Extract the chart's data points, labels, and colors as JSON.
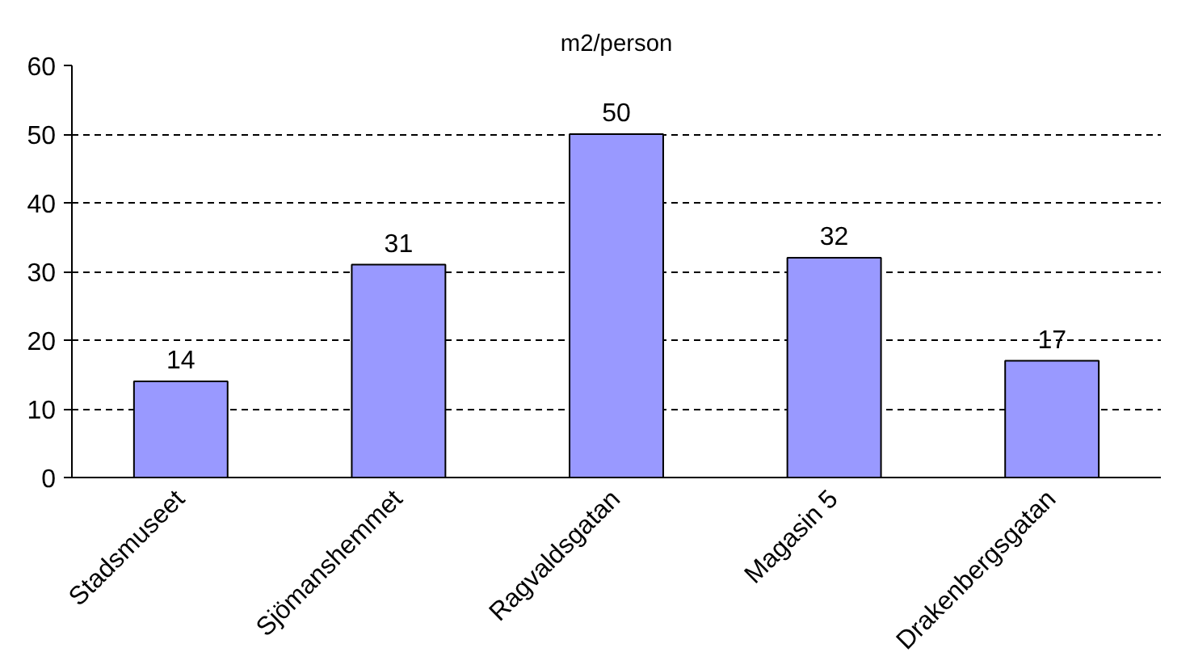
{
  "chart_data": {
    "type": "bar",
    "title": "m2/person",
    "categories": [
      "Stadsmuseet",
      "Sjömanshemmet",
      "Ragvaldsgatan",
      "Magasin 5",
      "Drakenbergsgatan"
    ],
    "values": [
      14,
      31,
      50,
      32,
      17
    ],
    "color": "#9999ff",
    "ylim": [
      0,
      60
    ],
    "yticks": [
      0,
      10,
      20,
      30,
      40,
      50,
      60
    ],
    "grid": "y",
    "data_labels": true
  }
}
